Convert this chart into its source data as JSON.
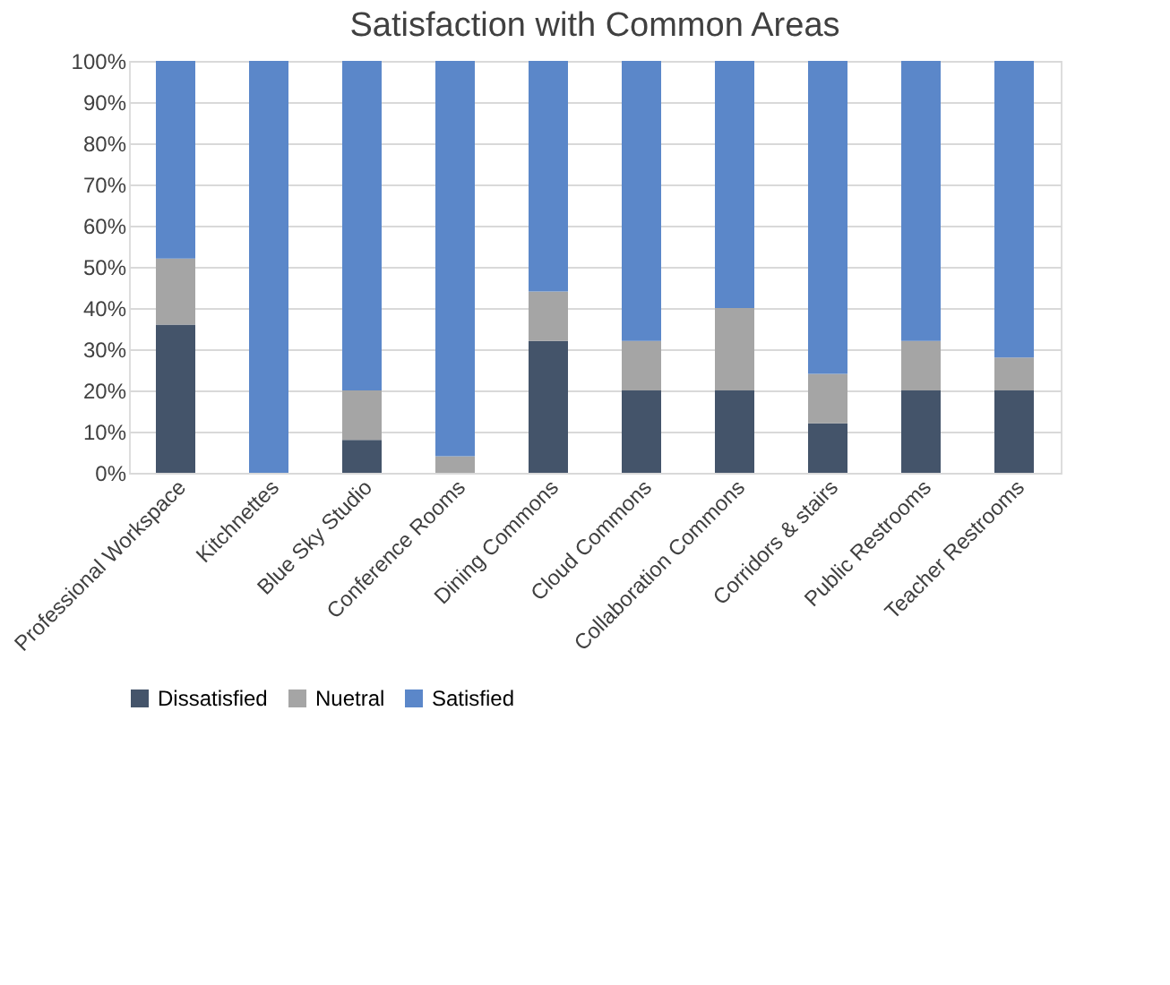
{
  "chart_data": {
    "type": "bar",
    "title": "Satisfaction with Common Areas",
    "stacked": true,
    "categories": [
      "Professional Workspace",
      "Kitchnettes",
      "Blue Sky Studio",
      "Conference Rooms",
      "Dining Commons",
      "Cloud Commons",
      "Collaboration Commons",
      "Corridors & stairs",
      "Public Restrooms",
      "Teacher Restrooms"
    ],
    "series": [
      {
        "name": "Dissatisfied",
        "color": "#44546a",
        "values": [
          36,
          0,
          8,
          0,
          32,
          20,
          20,
          12,
          20,
          20
        ]
      },
      {
        "name": "Nuetral",
        "color": "#a5a5a5",
        "values": [
          16,
          0,
          12,
          4,
          12,
          12,
          20,
          12,
          12,
          8
        ]
      },
      {
        "name": "Satisfied",
        "color": "#5b87c9",
        "values": [
          48,
          100,
          80,
          96,
          56,
          68,
          60,
          76,
          68,
          72
        ]
      }
    ],
    "ylim": [
      0,
      100
    ],
    "yticks": [
      {
        "value": 0,
        "label": "0%"
      },
      {
        "value": 10,
        "label": "10%"
      },
      {
        "value": 20,
        "label": "20%"
      },
      {
        "value": 30,
        "label": "30%"
      },
      {
        "value": 40,
        "label": "40%"
      },
      {
        "value": 50,
        "label": "50%"
      },
      {
        "value": 60,
        "label": "60%"
      },
      {
        "value": 70,
        "label": "70%"
      },
      {
        "value": 80,
        "label": "80%"
      },
      {
        "value": 90,
        "label": "90%"
      },
      {
        "value": 100,
        "label": "100%"
      }
    ],
    "grid": "y",
    "legend": "bottom"
  }
}
